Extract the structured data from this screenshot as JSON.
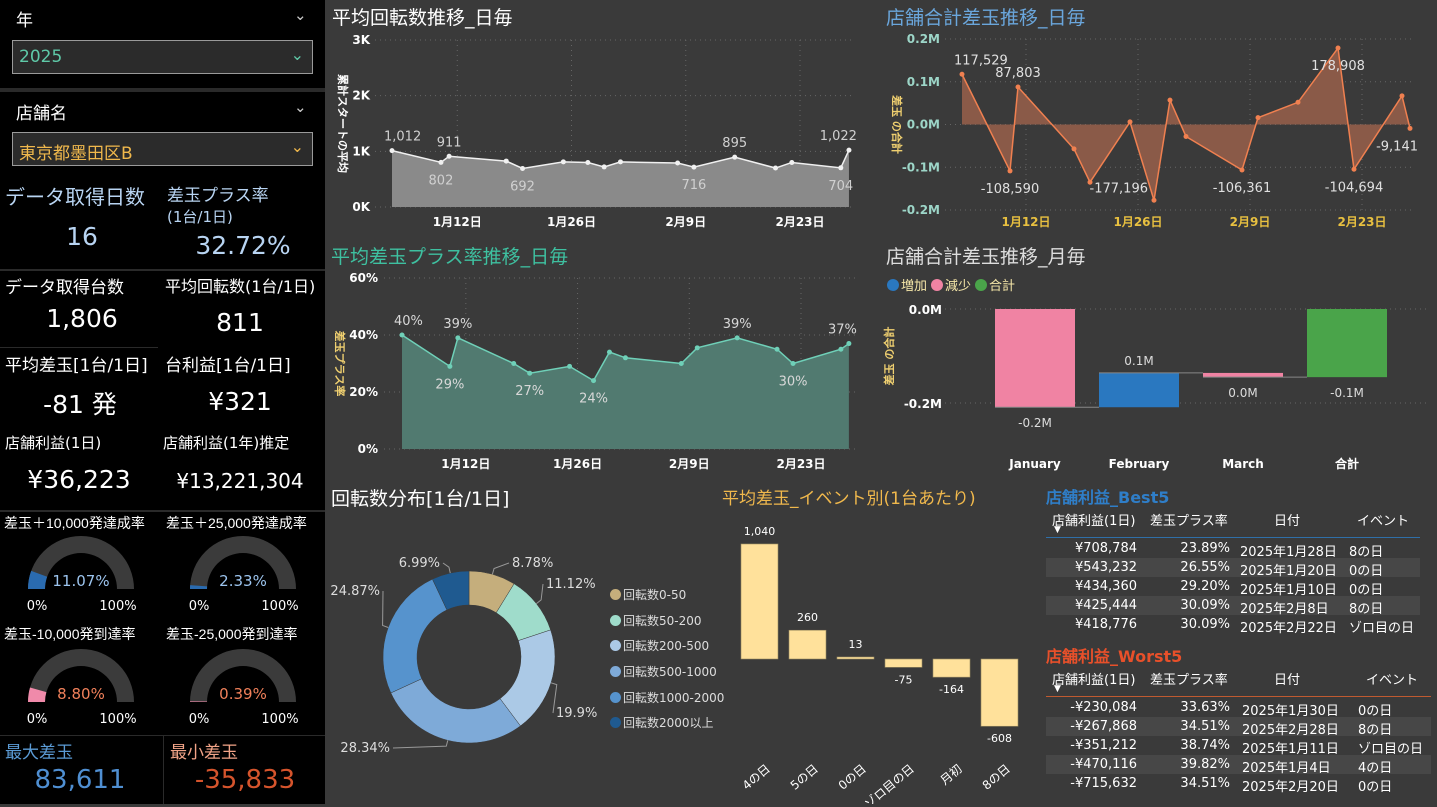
{
  "slicers": {
    "year_label": "年",
    "year_value": "2025",
    "store_label": "店舗名",
    "store_value": "東京都墨田区B"
  },
  "kpis": {
    "days_label": "データ取得日数",
    "days_value": "16",
    "plus_rate_label": "差玉プラス率",
    "plus_rate_sub": "(1台/1日)",
    "plus_rate_value": "32.72%",
    "machines_label": "データ取得台数",
    "machines_value": "1,806",
    "avg_spins_label": "平均回転数(1台/1日)",
    "avg_spins_value": "811",
    "avg_diff_label": "平均差玉[1台/1日]",
    "avg_diff_value": "-81 発",
    "unit_profit_label": "台利益[1台/1日]",
    "unit_profit_value": "¥321",
    "store_profit_label": "店舗利益(1日)",
    "store_profit_value": "¥36,223",
    "store_profit_year_label": "店舗利益(1年)推定",
    "store_profit_year_value": "¥13,221,304",
    "max_label": "最大差玉",
    "max_value": "83,611",
    "min_label": "最小差玉",
    "min_value": "-35,833"
  },
  "gauges": [
    {
      "title": "差玉＋10,000発達成率",
      "value_label": "11.07%",
      "value": 0.1107,
      "color": "#2a6bb0",
      "text_color": "#9cc4ee",
      "min": "0%",
      "max": "100%"
    },
    {
      "title": "差玉＋25,000発達成率",
      "value_label": "2.33%",
      "value": 0.0233,
      "color": "#2a6bb0",
      "text_color": "#9cc4ee",
      "min": "0%",
      "max": "100%"
    },
    {
      "title": "差玉-10,000発到達率",
      "value_label": "8.80%",
      "value": 0.088,
      "color": "#f08aaa",
      "text_color": "#f0805a",
      "min": "0%",
      "max": "100%"
    },
    {
      "title": "差玉-25,000発到達率",
      "value_label": "0.39%",
      "value": 0.0039,
      "color": "#f08aaa",
      "text_color": "#f0805a",
      "min": "0%",
      "max": "100%"
    }
  ],
  "chart_data": [
    {
      "id": "c1",
      "type": "area",
      "title": "平均回転数推移_日毎",
      "ylabel": "累計スタートの平均",
      "ylim": [
        0,
        3000
      ],
      "yticks": [
        {
          "v": 0,
          "label": "0K"
        },
        {
          "v": 1000,
          "label": "1K"
        },
        {
          "v": 2000,
          "label": "2K"
        },
        {
          "v": 3000,
          "label": "3K"
        }
      ],
      "xticks": [
        {
          "day": 12,
          "label": "1月12日"
        },
        {
          "day": 26,
          "label": "1月26日"
        },
        {
          "day": 40,
          "label": "2月9日"
        },
        {
          "day": 54,
          "label": "2月23日"
        }
      ],
      "points": [
        {
          "day": 4,
          "v": 1012,
          "label": "1,012",
          "pos": "above"
        },
        {
          "day": 10,
          "v": 802,
          "label": "802",
          "pos": "below"
        },
        {
          "day": 11,
          "v": 911,
          "label": "911",
          "pos": "above"
        },
        {
          "day": 18,
          "v": 825
        },
        {
          "day": 20,
          "v": 692,
          "label": "692",
          "pos": "below"
        },
        {
          "day": 25,
          "v": 810
        },
        {
          "day": 28,
          "v": 800
        },
        {
          "day": 30,
          "v": 720
        },
        {
          "day": 32,
          "v": 810
        },
        {
          "day": 39,
          "v": 790
        },
        {
          "day": 41,
          "v": 716,
          "label": "716",
          "pos": "below"
        },
        {
          "day": 46,
          "v": 895,
          "label": "895",
          "pos": "above"
        },
        {
          "day": 51,
          "v": 700
        },
        {
          "day": 53,
          "v": 800
        },
        {
          "day": 59,
          "v": 704,
          "label": "704",
          "pos": "below"
        },
        {
          "day": 60,
          "v": 1022,
          "label": "1,022",
          "pos": "above"
        }
      ]
    },
    {
      "id": "c2",
      "type": "area",
      "title": "店舗合計差玉推移_日毎",
      "ylabel": "差玉 の合計",
      "ylim": [
        -200000,
        200000
      ],
      "yticks": [
        {
          "v": -200000,
          "label": "-0.2M"
        },
        {
          "v": -100000,
          "label": "-0.1M"
        },
        {
          "v": 0,
          "label": "0.0M"
        },
        {
          "v": 100000,
          "label": "0.1M"
        },
        {
          "v": 200000,
          "label": "0.2M"
        }
      ],
      "xticks": [
        {
          "day": 12,
          "label": "1月12日"
        },
        {
          "day": 26,
          "label": "1月26日"
        },
        {
          "day": 40,
          "label": "2月9日"
        },
        {
          "day": 54,
          "label": "2月23日"
        }
      ],
      "points": [
        {
          "day": 4,
          "v": 117529,
          "label": "117,529",
          "pos": "above"
        },
        {
          "day": 10,
          "v": -108590,
          "label": "-108,590",
          "pos": "below"
        },
        {
          "day": 11,
          "v": 87803,
          "label": "87,803",
          "pos": "above"
        },
        {
          "day": 18,
          "v": -57000
        },
        {
          "day": 20,
          "v": -135000
        },
        {
          "day": 25,
          "v": 6000
        },
        {
          "day": 28,
          "v": -177196,
          "label": "-177,196",
          "pos": "below"
        },
        {
          "day": 30,
          "v": 57000
        },
        {
          "day": 32,
          "v": -28000
        },
        {
          "day": 39,
          "v": -106361,
          "label": "-106,361",
          "pos": "below"
        },
        {
          "day": 41,
          "v": 16000
        },
        {
          "day": 46,
          "v": 52000
        },
        {
          "day": 51,
          "v": 178908,
          "label": "178,908",
          "pos": "below"
        },
        {
          "day": 53,
          "v": -104694,
          "label": "-104,694",
          "pos": "below"
        },
        {
          "day": 59,
          "v": 67000
        },
        {
          "day": 60,
          "v": -9141,
          "label": "-9,141",
          "pos": "below"
        }
      ]
    },
    {
      "id": "c3",
      "type": "area",
      "title": "平均差玉プラス率推移_日毎",
      "ylabel": "差玉プラス率",
      "ylim": [
        0,
        60
      ],
      "yticks": [
        {
          "v": 0,
          "label": "0%"
        },
        {
          "v": 20,
          "label": "20%"
        },
        {
          "v": 40,
          "label": "40%"
        },
        {
          "v": 60,
          "label": "60%"
        }
      ],
      "xticks": [
        {
          "day": 12,
          "label": "1月12日"
        },
        {
          "day": 26,
          "label": "1月26日"
        },
        {
          "day": 40,
          "label": "2月9日"
        },
        {
          "day": 54,
          "label": "2月23日"
        }
      ],
      "points": [
        {
          "day": 4,
          "v": 40,
          "label": "40%",
          "pos": "above"
        },
        {
          "day": 10,
          "v": 29,
          "label": "29%",
          "pos": "below"
        },
        {
          "day": 11,
          "v": 39,
          "label": "39%",
          "pos": "above"
        },
        {
          "day": 18,
          "v": 30
        },
        {
          "day": 20,
          "v": 26.6,
          "label": "27%",
          "pos": "below"
        },
        {
          "day": 25,
          "v": 29
        },
        {
          "day": 28,
          "v": 24,
          "label": "24%",
          "pos": "below"
        },
        {
          "day": 30,
          "v": 34
        },
        {
          "day": 32,
          "v": 32
        },
        {
          "day": 39,
          "v": 30
        },
        {
          "day": 41,
          "v": 35.5
        },
        {
          "day": 46,
          "v": 39,
          "label": "39%",
          "pos": "above"
        },
        {
          "day": 51,
          "v": 35
        },
        {
          "day": 53,
          "v": 30,
          "label": "30%",
          "pos": "below"
        },
        {
          "day": 59,
          "v": 35
        },
        {
          "day": 60,
          "v": 37,
          "label": "37%",
          "pos": "above"
        }
      ]
    },
    {
      "id": "c4",
      "type": "waterfall",
      "title": "店舗合計差玉推移_月毎",
      "ylabel": "差玉 の合計",
      "legend": [
        {
          "label": "増加",
          "color": "#2a78c0"
        },
        {
          "label": "減少",
          "color": "#f083a3"
        },
        {
          "label": "合計",
          "color": "#4aa44a"
        }
      ],
      "yticks": [
        {
          "v": 0,
          "label": "0.0M"
        },
        {
          "v": -200000,
          "label": "-0.2M"
        }
      ],
      "categories": [
        "January",
        "February",
        "March",
        "合計"
      ],
      "values": [
        -209000,
        73000,
        -9000,
        -145000
      ],
      "labels": [
        "-0.2M",
        "0.1M",
        "0.0M",
        "-0.1M"
      ]
    },
    {
      "id": "c5",
      "type": "pie",
      "title": "回転数分布[1台/1日]",
      "slices": [
        {
          "name": "回転数0-50",
          "value": 8.78,
          "label": "8.78%",
          "color": "#c5ae7c"
        },
        {
          "name": "回転数50-200",
          "value": 11.12,
          "label": "11.12%",
          "color": "#9fdccb"
        },
        {
          "name": "回転数200-500",
          "value": 19.9,
          "label": "19.9%",
          "color": "#abc9e6"
        },
        {
          "name": "回転数500-1000",
          "value": 28.34,
          "label": "28.34%",
          "color": "#7eaad8"
        },
        {
          "name": "回転数1000-2000",
          "value": 24.87,
          "label": "24.87%",
          "color": "#5693cd"
        },
        {
          "name": "回転数2000以上",
          "value": 6.99,
          "label": "6.99%",
          "color": "#1f5a90"
        }
      ]
    },
    {
      "id": "c6",
      "type": "bar",
      "title": "平均差玉_イベント別(1台あたり)",
      "categories": [
        "4の日",
        "5の日",
        "0の日",
        "ゾロ目の日",
        "月初",
        "8の日"
      ],
      "values": [
        1040,
        260,
        13,
        -75,
        -164,
        -608
      ],
      "labels": [
        "1,040",
        "260",
        "13",
        "-75",
        "-164",
        "-608"
      ]
    }
  ],
  "best5": {
    "title": "店舗利益_Best5",
    "headers": [
      "店舗利益(1日)",
      "差玉プラス率",
      "日付",
      "イベント"
    ],
    "rows": [
      [
        "¥708,784",
        "23.89%",
        "2025年1月28日",
        "8の日"
      ],
      [
        "¥543,232",
        "26.55%",
        "2025年1月20日",
        "0の日"
      ],
      [
        "¥434,360",
        "29.20%",
        "2025年1月10日",
        "0の日"
      ],
      [
        "¥425,444",
        "30.09%",
        "2025年2月8日",
        "8の日"
      ],
      [
        "¥418,776",
        "30.09%",
        "2025年2月22日",
        "ゾロ目の日"
      ]
    ]
  },
  "worst5": {
    "title": "店舗利益_Worst5",
    "headers": [
      "店舗利益(1日)",
      "差玉プラス率",
      "日付",
      "イベント"
    ],
    "rows": [
      [
        "-¥230,084",
        "33.63%",
        "2025年1月30日",
        "0の日"
      ],
      [
        "-¥267,868",
        "34.51%",
        "2025年2月28日",
        "8の日"
      ],
      [
        "-¥351,212",
        "38.74%",
        "2025年1月11日",
        "ゾロ目の日"
      ],
      [
        "-¥470,116",
        "39.82%",
        "2025年1月4日",
        "4の日"
      ],
      [
        "-¥715,632",
        "34.51%",
        "2025年2月20日",
        "0の日"
      ]
    ]
  }
}
